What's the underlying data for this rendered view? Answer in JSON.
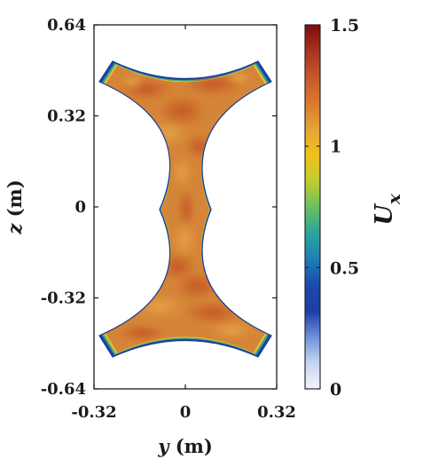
{
  "chart_data": {
    "type": "heatmap",
    "description_field": "Ux",
    "xlabel": {
      "var": "y",
      "unit": " (m)"
    },
    "ylabel": {
      "var": "z",
      "unit": " (m)"
    },
    "xlim": [
      -0.32,
      0.32
    ],
    "ylim": [
      -0.64,
      0.64
    ],
    "xticks": [
      -0.32,
      0,
      0.32
    ],
    "xtick_labels": [
      "-0.32",
      "0",
      "0.32"
    ],
    "yticks": [
      -0.64,
      -0.32,
      0,
      0.32,
      0.64
    ],
    "ytick_labels": [
      "-0.64",
      "-0.32",
      "0",
      "0.32",
      "0.64"
    ],
    "colorbar": {
      "label_main": "U",
      "label_sub": "x",
      "range": [
        0,
        1.5
      ],
      "ticks": [
        0,
        0.5,
        1,
        1.5
      ],
      "tick_labels": [
        "0",
        "0.5",
        "1",
        "1.5"
      ],
      "colormap": "parula-like",
      "colors": [
        "#f2f6fb",
        "#c6d6f0",
        "#6f90d8",
        "#1c3ea6",
        "#1b4aa8",
        "#1f7fb6",
        "#2aa59c",
        "#6cbf5e",
        "#c2cc2e",
        "#f0c21d",
        "#e8a23a",
        "#d87a2f",
        "#c5592a",
        "#a8331f",
        "#7a0d0d"
      ]
    },
    "domain_shape": "concave curvilinear hourglass cross-section (spacing between four cylinders)",
    "field_summary": {
      "core_value_range": [
        1.1,
        1.4
      ],
      "wall_value_range": [
        0,
        0.5
      ]
    }
  }
}
